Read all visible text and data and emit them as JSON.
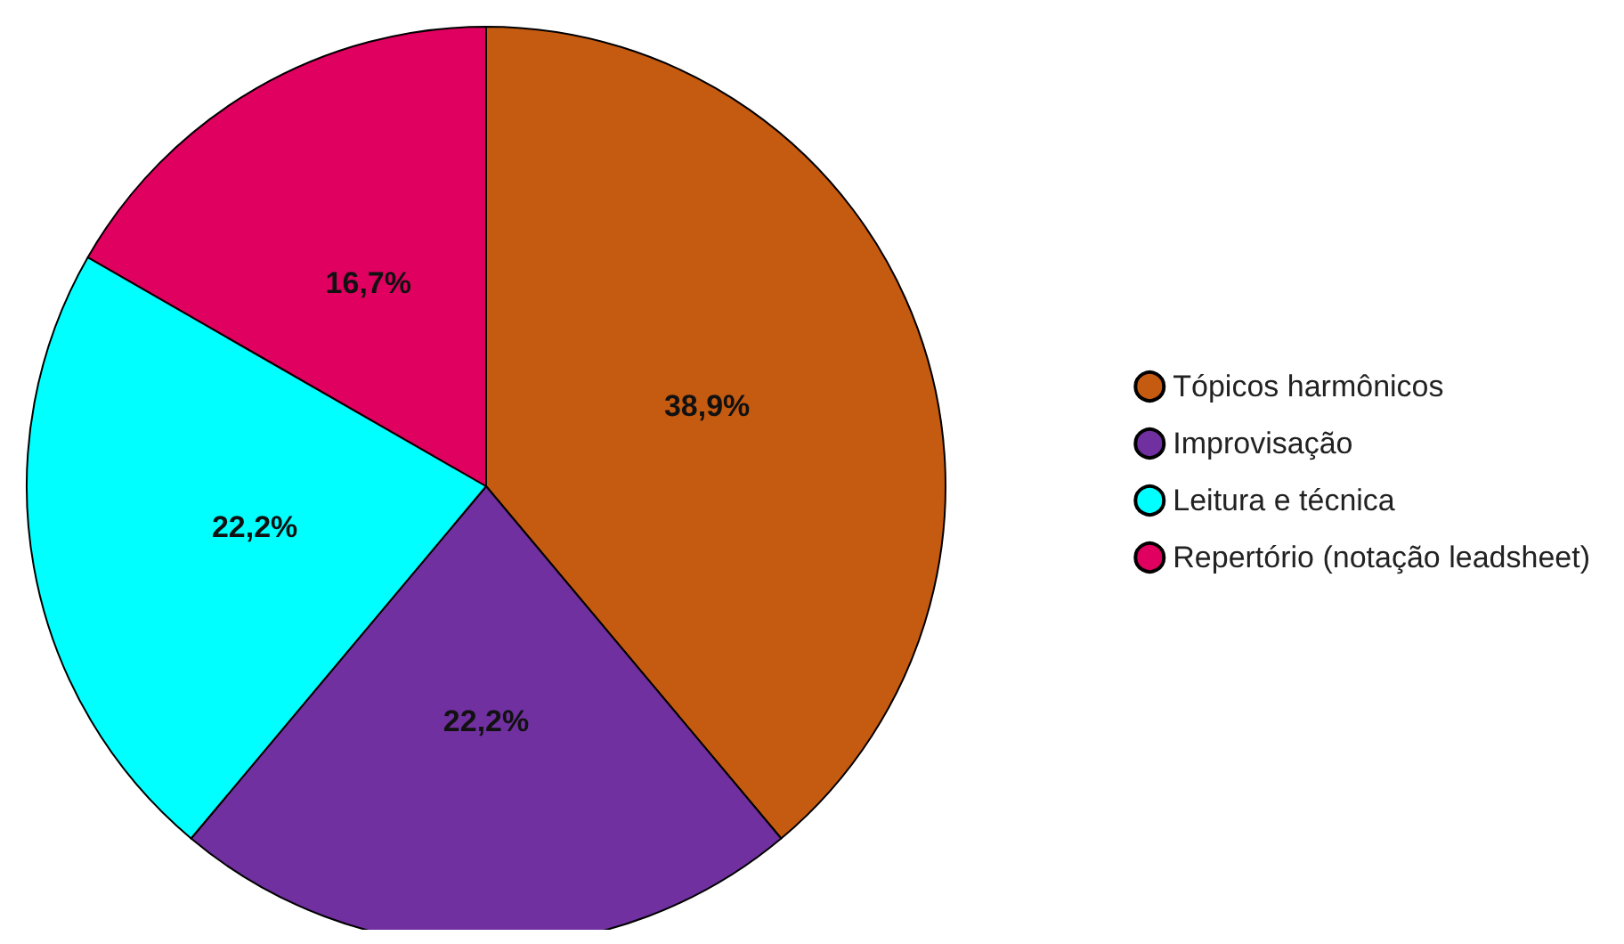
{
  "chart_data": {
    "type": "pie",
    "categories": [
      "Tópicos harmônicos",
      "Improvisação",
      "Leitura e técnica",
      "Repertório (notação leadsheet)"
    ],
    "values": [
      38.9,
      22.2,
      22.2,
      16.7
    ],
    "value_labels": [
      "38,9%",
      "22,2%",
      "22,2%",
      "16,7%"
    ],
    "colors": [
      "#c55a11",
      "#7030a0",
      "#00ffff",
      "#e0005f"
    ],
    "legend": "right"
  }
}
